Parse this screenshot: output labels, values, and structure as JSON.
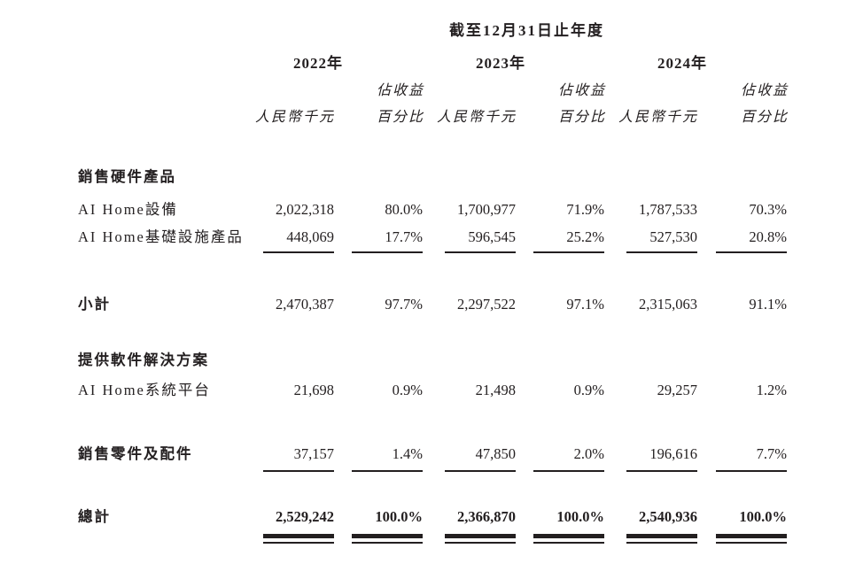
{
  "header": {
    "title": "截至12月31日止年度",
    "years": [
      "2022年",
      "2023年",
      "2024年"
    ],
    "share_of_revenue_line1": "佔收益",
    "share_of_revenue_line2": "百分比",
    "amount_unit": "人民幣千元"
  },
  "rows": [
    {
      "label": "銷售硬件產品",
      "type": "section-header"
    },
    {
      "label": "AI Home設備",
      "type": "data",
      "values": [
        "2,022,318",
        "80.0%",
        "1,700,977",
        "71.9%",
        "1,787,533",
        "70.3%"
      ]
    },
    {
      "label": "AI Home基礎設施產品",
      "type": "data-underlined",
      "values": [
        "448,069",
        "17.7%",
        "596,545",
        "25.2%",
        "527,530",
        "20.8%"
      ]
    },
    {
      "label": "小計",
      "type": "subtotal",
      "values": [
        "2,470,387",
        "97.7%",
        "2,297,522",
        "97.1%",
        "2,315,063",
        "91.1%"
      ]
    },
    {
      "label": "提供軟件解決方案",
      "type": "section-header"
    },
    {
      "label": "AI Home系統平台",
      "type": "data",
      "values": [
        "21,698",
        "0.9%",
        "21,498",
        "0.9%",
        "29,257",
        "1.2%"
      ]
    },
    {
      "label": "銷售零件及配件",
      "type": "data-underlined",
      "values": [
        "37,157",
        "1.4%",
        "47,850",
        "2.0%",
        "196,616",
        "7.7%"
      ]
    },
    {
      "label": "總計",
      "type": "grand-total",
      "values": [
        "2,529,242",
        "100.0%",
        "2,366,870",
        "100.0%",
        "2,540,936",
        "100.0%"
      ]
    }
  ]
}
